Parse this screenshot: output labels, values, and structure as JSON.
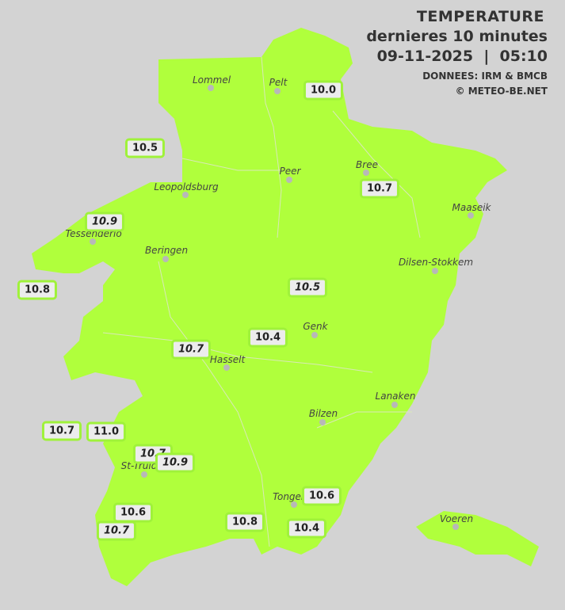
{
  "header": {
    "title": "TEMPERATURE",
    "subtitle": "dernieres 10 minutes",
    "datetime": "09-11-2025  |  05:10",
    "source": "DONNEES: IRM & BMCB",
    "copyright": "© METEO-BE.NET"
  },
  "colors": {
    "region_fill": "#b0ff3c",
    "background": "#d3d3d3",
    "label_border": "#9ff23a"
  },
  "cities": [
    "Lommel",
    "Pelt",
    "Peer",
    "Bree",
    "Leopoldsburg",
    "Maaseik",
    "Tessenderlo",
    "Beringen",
    "Dilsen-Stokkem",
    "Genk",
    "Hasselt",
    "Lanaken",
    "Bilzen",
    "St-Truiden",
    "Tongeren",
    "Voeren"
  ],
  "readings": [
    "10.0",
    "10.5",
    "10.7",
    "10.9",
    "10.8",
    "10.5",
    "10.4",
    "10.7",
    "10.7",
    "11.0",
    "10.7",
    "10.9",
    "10.6",
    "10.7",
    "10.8",
    "10.6",
    "10.4"
  ]
}
